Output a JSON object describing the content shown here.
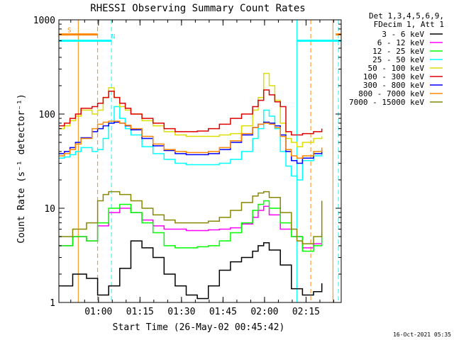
{
  "chart_data": {
    "type": "line",
    "title": "RHESSI Observing Summary Count Rates",
    "ylabel": "Count Rate (s⁻¹ detector⁻¹)",
    "xlabel": "Start Time (26-May-02 00:45:42)",
    "yscale": "log",
    "ylim": [
      1,
      1000
    ],
    "xlim_minutes": [
      0,
      102
    ],
    "x_ticks": [
      {
        "label": "01:00",
        "t": 14.3
      },
      {
        "label": "01:15",
        "t": 29.3
      },
      {
        "label": "01:30",
        "t": 44.3
      },
      {
        "label": "01:45",
        "t": 59.3
      },
      {
        "label": "02:00",
        "t": 74.3
      },
      {
        "label": "02:15",
        "t": 89.3
      }
    ],
    "y_ticks": [
      {
        "label": "1",
        "v": 1
      },
      {
        "label": "10",
        "v": 10
      },
      {
        "label": "100",
        "v": 100
      },
      {
        "label": "1000",
        "v": 1000
      }
    ],
    "legend_header": [
      "Det 1,3,4,5,6,9,",
      "FDecim 1, Att 1"
    ],
    "legend_position": "right",
    "series": [
      {
        "name": "3 - 6 keV",
        "color": "#000000",
        "t": [
          0,
          5,
          10,
          14,
          18,
          22,
          26,
          30,
          34,
          38,
          42,
          46,
          50,
          54,
          58,
          62,
          66,
          70,
          72,
          74,
          76,
          80,
          84,
          88,
          92,
          95
        ],
        "v": [
          1.5,
          2,
          1.8,
          1.2,
          1.5,
          2.3,
          4.5,
          3.8,
          3,
          2,
          1.5,
          1.2,
          1.1,
          1.5,
          2.2,
          2.7,
          3,
          3.5,
          4,
          4.3,
          3.6,
          2.5,
          1.4,
          1.2,
          1.3,
          1.6
        ]
      },
      {
        "name": "6 - 12 keV",
        "color": "#ff00ff",
        "t": [
          0,
          5,
          10,
          14,
          18,
          22,
          26,
          30,
          34,
          38,
          42,
          46,
          50,
          54,
          58,
          62,
          66,
          70,
          72,
          74,
          76,
          80,
          84,
          88,
          92,
          95
        ],
        "v": [
          4,
          5,
          4.5,
          6.5,
          9,
          10,
          9,
          7.5,
          6.5,
          6,
          6,
          5.8,
          5.8,
          5.9,
          6,
          6.2,
          6.8,
          8,
          9.5,
          10.5,
          8.5,
          6,
          5,
          3.8,
          4.2,
          5.5
        ]
      },
      {
        "name": "12 - 25 keV",
        "color": "#00ff00",
        "t": [
          0,
          5,
          10,
          14,
          18,
          22,
          26,
          30,
          34,
          38,
          42,
          46,
          50,
          54,
          58,
          62,
          66,
          70,
          72,
          74,
          76,
          80,
          84,
          88,
          92,
          95
        ],
        "v": [
          4,
          5,
          4.5,
          7,
          10,
          11,
          9,
          7,
          5.5,
          4,
          3.8,
          3.8,
          3.9,
          4,
          4.5,
          5.5,
          7,
          9.5,
          11,
          12,
          10,
          7,
          5,
          3.5,
          4,
          5.5
        ]
      },
      {
        "name": "25 - 50 keV",
        "color": "#00ffff",
        "t": [
          0,
          2,
          4,
          6,
          8,
          12,
          14,
          16,
          18,
          20,
          22,
          24,
          26,
          30,
          34,
          38,
          42,
          46,
          50,
          54,
          58,
          62,
          66,
          70,
          72,
          74,
          76,
          78,
          80,
          82,
          84,
          86,
          88,
          92,
          95
        ],
        "v": [
          34,
          35,
          37,
          40,
          44,
          40,
          42,
          55,
          80,
          120,
          90,
          70,
          60,
          45,
          38,
          33,
          30,
          29,
          29,
          29,
          30,
          33,
          40,
          55,
          70,
          110,
          95,
          70,
          40,
          28,
          22,
          20,
          32,
          36,
          42
        ]
      },
      {
        "name": "50 - 100 keV",
        "color": "#dddd00",
        "t": [
          0,
          2,
          4,
          6,
          8,
          12,
          14,
          16,
          18,
          20,
          22,
          24,
          26,
          30,
          34,
          38,
          42,
          46,
          50,
          54,
          58,
          62,
          66,
          70,
          72,
          74,
          76,
          78,
          80,
          82,
          84,
          86,
          88,
          92,
          95
        ],
        "v": [
          70,
          75,
          85,
          95,
          110,
          100,
          110,
          150,
          190,
          150,
          120,
          110,
          100,
          85,
          75,
          65,
          60,
          58,
          58,
          58,
          60,
          62,
          75,
          110,
          150,
          270,
          200,
          140,
          80,
          55,
          50,
          45,
          50,
          55,
          58
        ]
      },
      {
        "name": "100 - 300 keV",
        "color": "#dd0000",
        "t": [
          0,
          2,
          4,
          6,
          8,
          12,
          14,
          16,
          18,
          20,
          22,
          24,
          26,
          30,
          34,
          38,
          42,
          46,
          50,
          54,
          58,
          62,
          66,
          70,
          72,
          74,
          76,
          78,
          80,
          82,
          84,
          86,
          88,
          92,
          95
        ],
        "v": [
          75,
          80,
          90,
          100,
          115,
          120,
          130,
          150,
          175,
          150,
          130,
          115,
          100,
          90,
          80,
          70,
          65,
          65,
          66,
          70,
          78,
          90,
          100,
          120,
          140,
          180,
          160,
          135,
          120,
          65,
          60,
          60,
          62,
          65,
          70
        ]
      },
      {
        "name": "300 - 800 keV",
        "color": "#0000ff",
        "t": [
          0,
          2,
          4,
          6,
          8,
          12,
          14,
          16,
          18,
          20,
          22,
          24,
          26,
          30,
          34,
          38,
          42,
          46,
          50,
          54,
          58,
          62,
          66,
          70,
          72,
          74,
          76,
          78,
          80,
          82,
          84,
          86,
          88,
          92,
          95
        ],
        "v": [
          38,
          40,
          44,
          50,
          56,
          65,
          70,
          75,
          80,
          82,
          80,
          75,
          68,
          55,
          46,
          41,
          38,
          37,
          37,
          38,
          42,
          50,
          60,
          72,
          78,
          82,
          80,
          75,
          60,
          40,
          32,
          30,
          34,
          38,
          42
        ]
      },
      {
        "name": "800 - 7000 keV",
        "color": "#ff8800",
        "t": [
          0,
          2,
          4,
          6,
          8,
          12,
          14,
          16,
          18,
          20,
          22,
          24,
          26,
          30,
          34,
          38,
          42,
          46,
          50,
          54,
          58,
          62,
          66,
          70,
          72,
          74,
          76,
          78,
          80,
          82,
          84,
          86,
          88,
          92,
          95
        ],
        "v": [
          36,
          38,
          42,
          48,
          55,
          70,
          78,
          82,
          84,
          84,
          80,
          76,
          70,
          58,
          48,
          42,
          40,
          39,
          39,
          40,
          44,
          52,
          62,
          72,
          78,
          80,
          78,
          72,
          58,
          42,
          36,
          34,
          36,
          40,
          44
        ]
      },
      {
        "name": "7000 - 15000 keV",
        "color": "#888800",
        "t": [
          0,
          5,
          10,
          14,
          16,
          18,
          20,
          22,
          26,
          30,
          34,
          38,
          42,
          46,
          50,
          54,
          58,
          62,
          66,
          70,
          72,
          74,
          76,
          80,
          84,
          86,
          88,
          92,
          95
        ],
        "v": [
          5,
          6,
          7,
          12,
          14,
          15,
          15,
          14,
          12,
          10,
          8.5,
          7.5,
          7,
          7,
          7,
          7.3,
          8,
          9.5,
          11.5,
          13.5,
          14.5,
          15,
          13,
          9,
          6,
          4.5,
          4.2,
          5,
          12
        ]
      }
    ],
    "markers": [
      {
        "label": "S",
        "color": "#ff8800",
        "t_start": 0,
        "t_end": 14,
        "level": 700
      },
      {
        "label": "N",
        "color": "#00ffff",
        "t_start": 0,
        "t_end": 19,
        "level": 600
      },
      {
        "label": "",
        "color": "#00ffff",
        "t_start": 86,
        "t_end": 102,
        "level": 600
      },
      {
        "label": "",
        "color": "#ff8800",
        "t_start": 100,
        "t_end": 102,
        "level": 700
      }
    ],
    "vertical_lines": [
      {
        "t": 7,
        "color": "#ff8800",
        "dashed": false
      },
      {
        "t": 14,
        "color": "#ff8800",
        "dashed": true
      },
      {
        "t": 19,
        "color": "#00ffff",
        "dashed": true
      },
      {
        "t": 86,
        "color": "#00ffff",
        "dashed": false
      },
      {
        "t": 91,
        "color": "#ff8800",
        "dashed": true
      },
      {
        "t": 99,
        "color": "#ff8800",
        "dashed": false
      },
      {
        "t": 101,
        "color": "#00ffff",
        "dashed": true
      }
    ]
  },
  "footer_timestamp": "16-Oct-2021 05:35"
}
